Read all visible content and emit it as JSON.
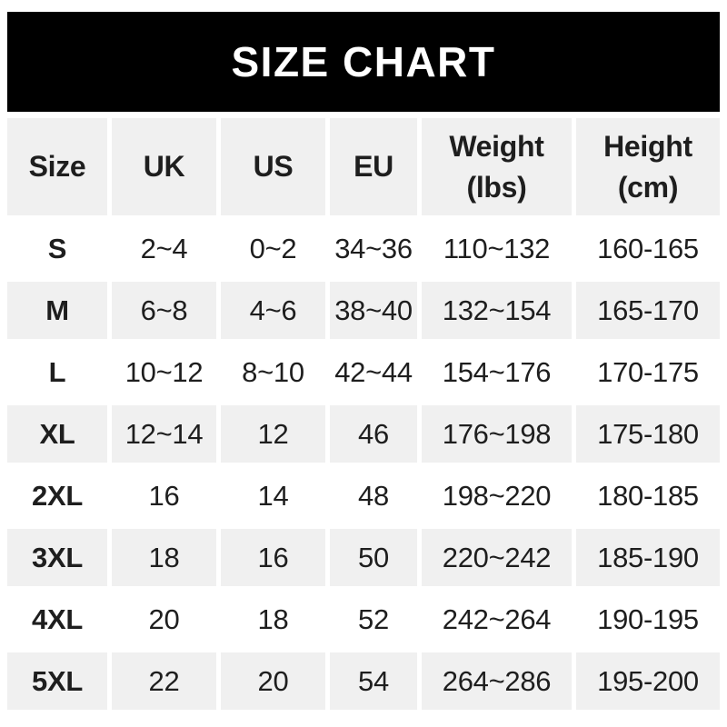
{
  "banner": {
    "title": "SIZE CHART"
  },
  "colors": {
    "banner_bg": "#000000",
    "banner_text": "#ffffff",
    "row_shaded_bg": "#f0f0f0",
    "row_plain_bg": "#ffffff",
    "text": "#1e1e1e"
  },
  "chart_data": {
    "type": "table",
    "title": "SIZE CHART",
    "columns": [
      "Size",
      "UK",
      "US",
      "EU",
      "Weight (lbs)",
      "Height (cm)"
    ],
    "column_header_lines": [
      [
        "Size"
      ],
      [
        "UK"
      ],
      [
        "US"
      ],
      [
        "EU"
      ],
      [
        "Weight",
        "(lbs)"
      ],
      [
        "Height",
        "(cm)"
      ]
    ],
    "rows": [
      [
        "S",
        "2~4",
        "0~2",
        "34~36",
        "110~132",
        "160-165"
      ],
      [
        "M",
        "6~8",
        "4~6",
        "38~40",
        "132~154",
        "165-170"
      ],
      [
        "L",
        "10~12",
        "8~10",
        "42~44",
        "154~176",
        "170-175"
      ],
      [
        "XL",
        "12~14",
        "12",
        "46",
        "176~198",
        "175-180"
      ],
      [
        "2XL",
        "16",
        "14",
        "48",
        "198~220",
        "180-185"
      ],
      [
        "3XL",
        "18",
        "16",
        "50",
        "220~242",
        "185-190"
      ],
      [
        "4XL",
        "20",
        "18",
        "52",
        "242~264",
        "190-195"
      ],
      [
        "5XL",
        "22",
        "20",
        "54",
        "264~286",
        "195-200"
      ]
    ],
    "shaded_rows": [
      "header",
      "M",
      "XL",
      "3XL",
      "5XL"
    ],
    "layout": {
      "grid_lines": "none",
      "row_striping": "alternating starting with shaded header"
    }
  }
}
